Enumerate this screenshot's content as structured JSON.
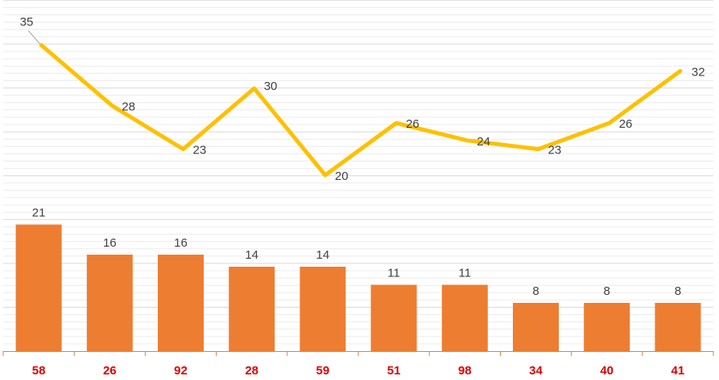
{
  "chart_data": {
    "type": "bar",
    "categories": [
      "58",
      "26",
      "92",
      "28",
      "59",
      "51",
      "98",
      "34",
      "40",
      "41"
    ],
    "series": [
      {
        "kind": "bar",
        "values": [
          21,
          16,
          16,
          14,
          14,
          11,
          11,
          8,
          8,
          8
        ],
        "color": "#ed7d31"
      },
      {
        "kind": "line",
        "values": [
          35,
          28,
          23,
          30,
          20,
          26,
          24,
          23,
          26,
          32
        ],
        "color": "#ffc000"
      }
    ],
    "title": "",
    "xlabel": "",
    "ylabel": "",
    "ylim": [
      0,
      40
    ],
    "grid": true,
    "legend": "none",
    "tick_label_color": "#e00000",
    "axis_color": "#ed7d31",
    "gridline_color": "#d9d9d9"
  }
}
